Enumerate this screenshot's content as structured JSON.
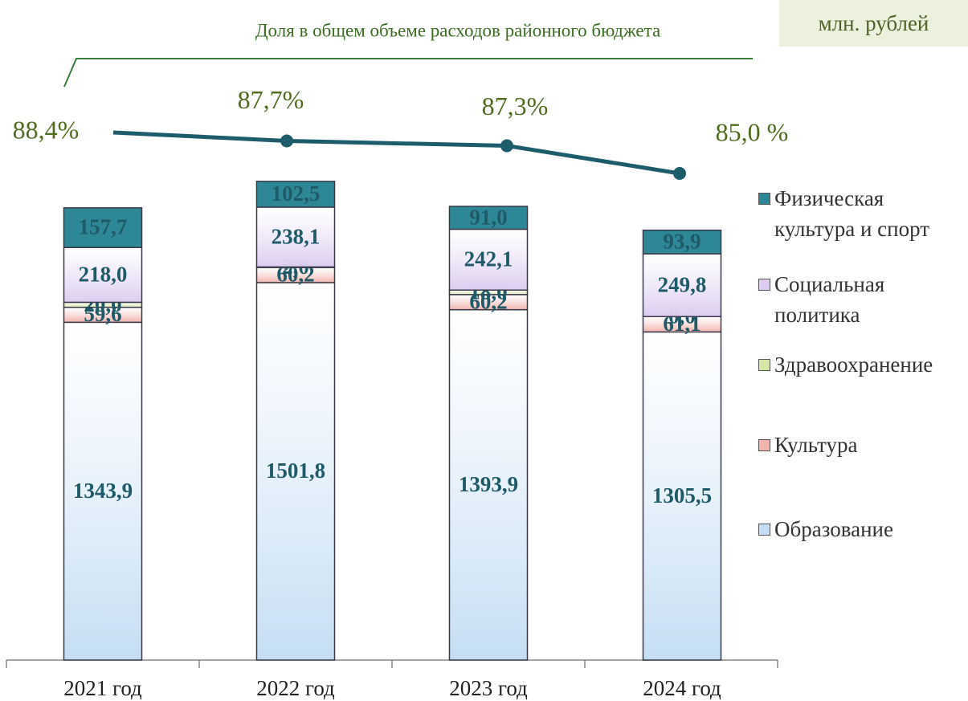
{
  "chart_data": {
    "type": "bar",
    "stacked": true,
    "subtitle": "Доля в общем объеме расходов районного бюджета",
    "unit_label": "млн. рублей",
    "categories": [
      "2021 год",
      "2022 год",
      "2023 год",
      "2024 год"
    ],
    "ylim": [
      0,
      2000
    ],
    "series": [
      {
        "name": "Образование",
        "color": "#c5def4",
        "values": [
          1343.9,
          1501.8,
          1393.9,
          1305.5
        ],
        "value_labels": [
          "1343,9",
          "1501,8",
          "1393,9",
          "1305,5"
        ]
      },
      {
        "name": "Культура",
        "color": "#f2b3ad",
        "values": [
          59.6,
          60.2,
          60.2,
          61.1
        ],
        "value_labels": [
          "59,6",
          "60,2",
          "60,2",
          "61,1"
        ]
      },
      {
        "name": "Здравоохранение",
        "color": "#d5e7a6",
        "values": [
          20.0,
          2.0,
          18.0,
          0.0
        ],
        "value_labels": [
          "20,0",
          "2,0",
          "18,0",
          "0,0"
        ]
      },
      {
        "name": "Социальная политика",
        "color": "#dccdf0",
        "values": [
          218.0,
          238.1,
          242.1,
          249.8
        ],
        "value_labels": [
          "218,0",
          "238,1",
          "242,1",
          "249,8"
        ]
      },
      {
        "name": "Физическая культура и спорт",
        "color": "#2e8797",
        "values": [
          157.7,
          102.5,
          91.0,
          93.9
        ],
        "value_labels": [
          "157,7",
          "102,5",
          "91,0",
          "93,9"
        ]
      },
      {
        "type": "line",
        "axis": "y2",
        "color": "#1d5c6b",
        "values": [
          88.4,
          87.7,
          87.3,
          85.0
        ],
        "value_labels": [
          "88,4%",
          "87,7%",
          "87,3%",
          "85,0 %"
        ]
      }
    ],
    "y2lim": [
      70,
      90
    ]
  }
}
